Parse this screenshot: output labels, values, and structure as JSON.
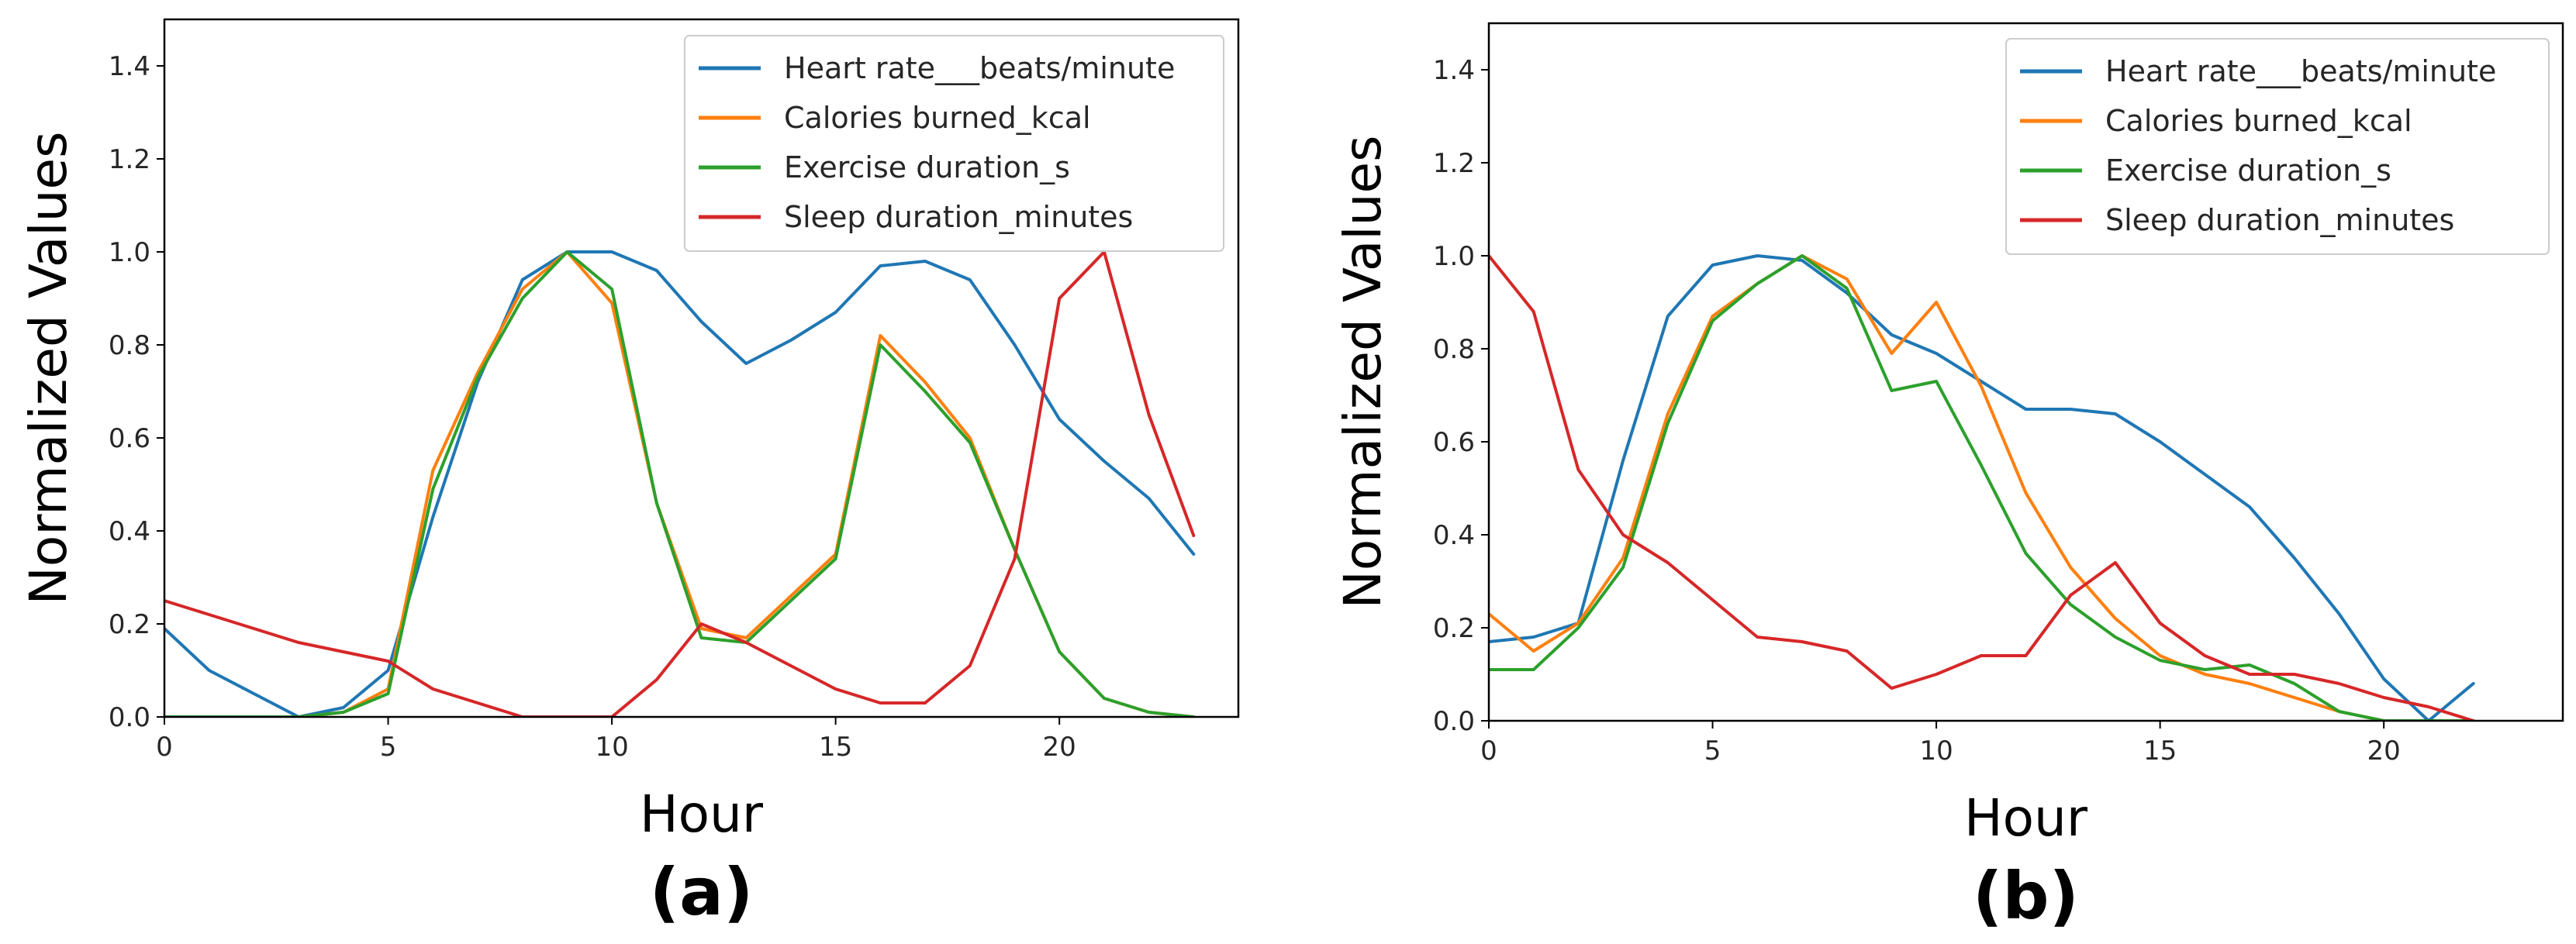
{
  "chart_data": [
    {
      "type": "line",
      "caption": "(a)",
      "xlabel": "Hour",
      "ylabel": "Normalized Values",
      "xlim": [
        0,
        24
      ],
      "ylim": [
        0,
        1.5
      ],
      "xticks": [
        0,
        5,
        10,
        15,
        20
      ],
      "xtick_labels": [
        "0",
        "5",
        "10",
        "15",
        "20"
      ],
      "yticks": [
        0.0,
        0.2,
        0.4,
        0.6,
        0.8,
        1.0,
        1.2,
        1.4
      ],
      "ytick_labels": [
        "0.0",
        "0.2",
        "0.4",
        "0.6",
        "0.8",
        "1.0",
        "1.2",
        "1.4"
      ],
      "grid": false,
      "legend_position": "top-right",
      "x": [
        0,
        1,
        2,
        3,
        4,
        5,
        6,
        7,
        8,
        9,
        10,
        11,
        12,
        13,
        14,
        15,
        16,
        17,
        18,
        19,
        20,
        21,
        22,
        23
      ],
      "series": [
        {
          "name": "Heart rate___beats/minute",
          "color": "#1f77b4",
          "values": [
            0.19,
            0.1,
            0.05,
            0.0,
            0.02,
            0.1,
            0.43,
            0.72,
            0.94,
            1.0,
            1.0,
            0.96,
            0.85,
            0.76,
            0.81,
            0.87,
            0.97,
            0.98,
            0.94,
            0.8,
            0.64,
            0.55,
            0.47,
            0.35
          ]
        },
        {
          "name": "Calories burned_kcal",
          "color": "#ff7f0e",
          "values": [
            0.0,
            0.0,
            0.0,
            0.0,
            0.01,
            0.06,
            0.53,
            0.74,
            0.92,
            1.0,
            0.89,
            0.46,
            0.19,
            0.17,
            0.26,
            0.35,
            0.82,
            0.72,
            0.6,
            0.36,
            0.14,
            0.04,
            0.01,
            0.0
          ]
        },
        {
          "name": "Exercise duration_s",
          "color": "#2ca02c",
          "values": [
            0.0,
            0.0,
            0.0,
            0.0,
            0.01,
            0.05,
            0.49,
            0.73,
            0.9,
            1.0,
            0.92,
            0.46,
            0.17,
            0.16,
            0.25,
            0.34,
            0.8,
            0.7,
            0.59,
            0.36,
            0.14,
            0.04,
            0.01,
            0.0
          ]
        },
        {
          "name": "Sleep duration_minutes",
          "color": "#d62728",
          "values": [
            0.25,
            0.22,
            0.19,
            0.16,
            0.14,
            0.12,
            0.06,
            0.03,
            0.0,
            0.0,
            0.0,
            0.08,
            0.2,
            0.16,
            0.11,
            0.06,
            0.03,
            0.03,
            0.11,
            0.34,
            0.9,
            1.0,
            0.65,
            0.39
          ]
        }
      ]
    },
    {
      "type": "line",
      "caption": "(b)",
      "xlabel": "Hour",
      "ylabel": "Normalized Values",
      "xlim": [
        0,
        24
      ],
      "ylim": [
        0,
        1.5
      ],
      "xticks": [
        0,
        5,
        10,
        15,
        20
      ],
      "xtick_labels": [
        "0",
        "5",
        "10",
        "15",
        "20"
      ],
      "yticks": [
        0.0,
        0.2,
        0.4,
        0.6,
        0.8,
        1.0,
        1.2,
        1.4
      ],
      "ytick_labels": [
        "0.0",
        "0.2",
        "0.4",
        "0.6",
        "0.8",
        "1.0",
        "1.2",
        "1.4"
      ],
      "grid": false,
      "legend_position": "top-right",
      "x": [
        0,
        1,
        2,
        3,
        4,
        5,
        6,
        7,
        8,
        9,
        10,
        11,
        12,
        13,
        14,
        15,
        16,
        17,
        18,
        19,
        20,
        21,
        22
      ],
      "series": [
        {
          "name": "Heart rate___beats/minute",
          "color": "#1f77b4",
          "values": [
            0.17,
            0.18,
            0.21,
            0.56,
            0.87,
            0.98,
            1.0,
            0.99,
            0.92,
            0.83,
            0.79,
            0.73,
            0.67,
            0.67,
            0.66,
            0.6,
            0.53,
            0.46,
            0.35,
            0.23,
            0.09,
            0.0,
            0.08
          ]
        },
        {
          "name": "Calories burned_kcal",
          "color": "#ff7f0e",
          "values": [
            0.23,
            0.15,
            0.21,
            0.35,
            0.66,
            0.87,
            0.94,
            1.0,
            0.95,
            0.79,
            0.9,
            0.72,
            0.49,
            0.33,
            0.22,
            0.14,
            0.1,
            0.08,
            0.05,
            0.02,
            0.0,
            0.0,
            0.0
          ]
        },
        {
          "name": "Exercise duration_s",
          "color": "#2ca02c",
          "values": [
            0.11,
            0.11,
            0.2,
            0.33,
            0.64,
            0.86,
            0.94,
            1.0,
            0.93,
            0.71,
            0.73,
            0.55,
            0.36,
            0.25,
            0.18,
            0.13,
            0.11,
            0.12,
            0.08,
            0.02,
            0.0,
            0.0,
            0.0
          ]
        },
        {
          "name": "Sleep duration_minutes",
          "color": "#d62728",
          "values": [
            1.0,
            0.88,
            0.54,
            0.4,
            0.34,
            0.26,
            0.18,
            0.17,
            0.15,
            0.07,
            0.1,
            0.14,
            0.14,
            0.27,
            0.34,
            0.21,
            0.14,
            0.1,
            0.1,
            0.08,
            0.05,
            0.03,
            0.0
          ]
        }
      ]
    }
  ]
}
